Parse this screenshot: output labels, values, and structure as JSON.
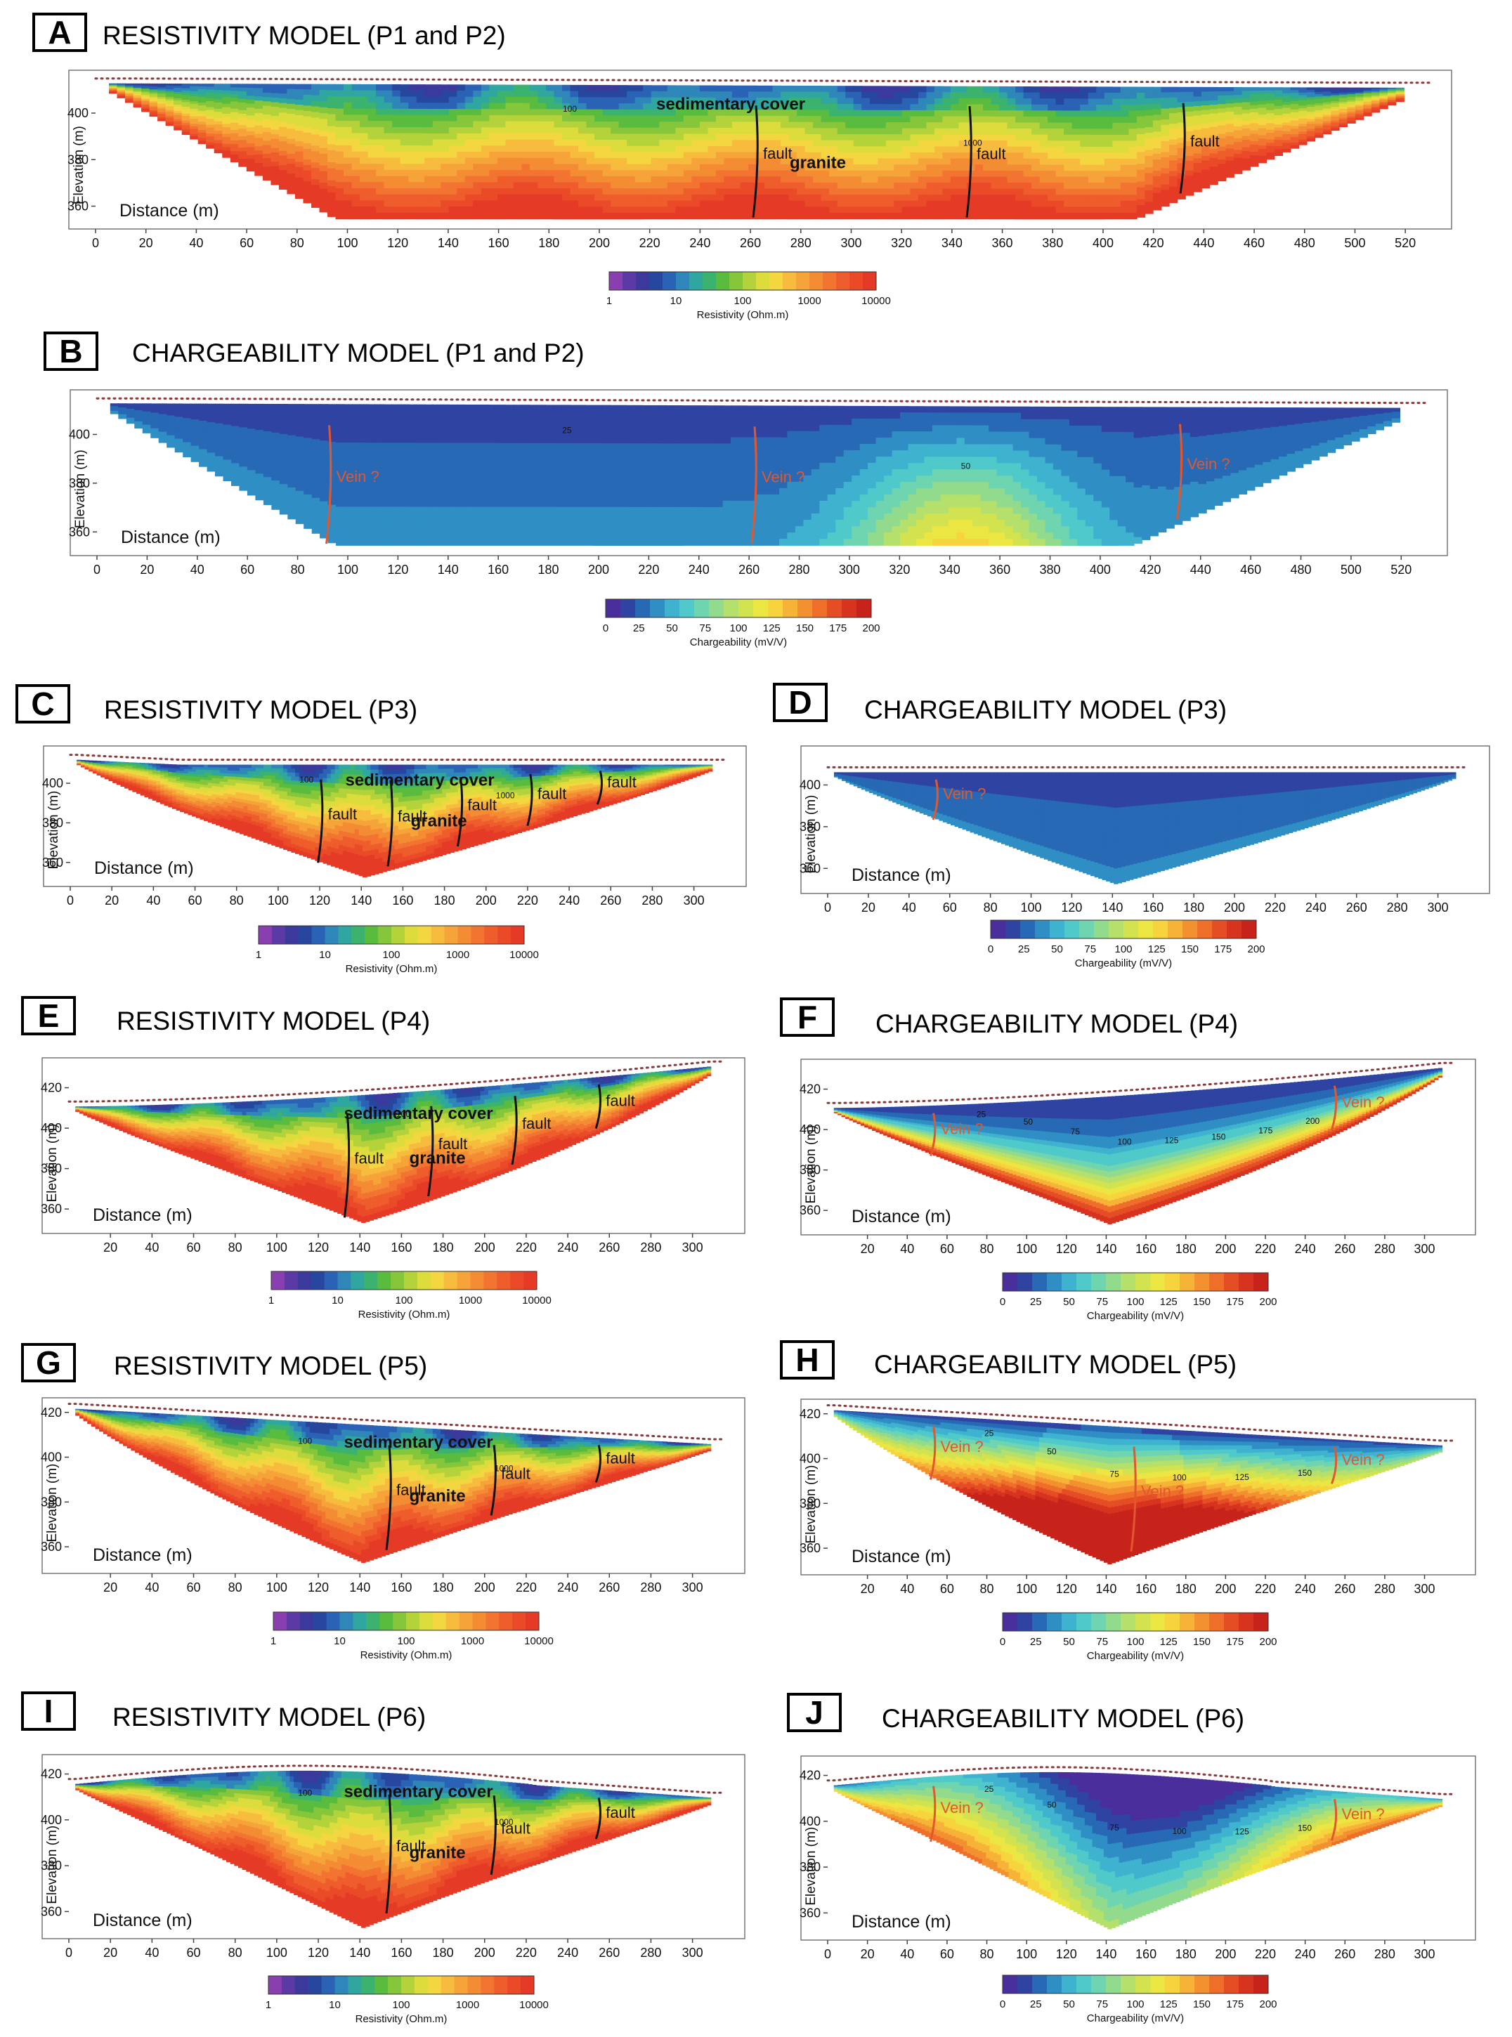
{
  "colors": {
    "resistivity_scale": [
      "#8a3fb0",
      "#5b3aa6",
      "#3b3a9c",
      "#27469d",
      "#2a63b5",
      "#2f86b9",
      "#2fa7a0",
      "#3bb36e",
      "#59bc3e",
      "#85c63a",
      "#b4d23a",
      "#dcdc3c",
      "#f4d640",
      "#f7bc3d",
      "#f6a339",
      "#f48c34",
      "#f27430",
      "#ee5d2b",
      "#ea4a28",
      "#e43a26"
    ],
    "chargeability_scale": [
      "#4a2f9c",
      "#2f43a2",
      "#2769b4",
      "#2f8fc4",
      "#3fb2cf",
      "#4fc9c9",
      "#6fd4b0",
      "#92db8d",
      "#b4e06b",
      "#d3e350",
      "#ece642",
      "#f7d43e",
      "#f6b338",
      "#f39131",
      "#ee6e2a",
      "#e54d24",
      "#d8331f",
      "#c8231b"
    ],
    "fault_line": "#111111",
    "vein_line": "#e2572e",
    "vein_text": "#e2572e",
    "electrodes": "#8a3a3a",
    "frame": "#555555"
  },
  "shared": {
    "resistivity_axis": "Resistivity (Ohm.m)",
    "chargeability_axis": "Chargeability (mV/V)",
    "elevation_label": "Elevation (m)",
    "distance_label": "Distance (m)",
    "res_ticks": [
      "1",
      "10",
      "100",
      "1000",
      "10000"
    ],
    "chg_ticks": [
      "0",
      "25",
      "50",
      "75",
      "100",
      "125",
      "150",
      "175",
      "200"
    ]
  },
  "chart_data": [
    {
      "panel": "A",
      "type": "heatmap",
      "title": "RESISTIVITY MODEL  (P1 and P2)",
      "variable": "resistivity",
      "xlim": [
        0,
        530
      ],
      "ylim": [
        352,
        416
      ],
      "xticks": [
        0,
        20,
        40,
        60,
        80,
        100,
        120,
        140,
        160,
        180,
        200,
        220,
        240,
        260,
        280,
        300,
        320,
        340,
        360,
        380,
        400,
        420,
        440,
        460,
        480,
        500,
        520
      ],
      "yticks": [
        360,
        380,
        400
      ],
      "annotations": [
        "sedimentary cover",
        "granite",
        "fault",
        "fault",
        "fault"
      ],
      "contour_labels": [
        "100",
        "1000"
      ],
      "legend_title": "Resistivity (Ohm.m)",
      "legend_ticks": [
        "1",
        "10",
        "100",
        "1000",
        "10000"
      ]
    },
    {
      "panel": "B",
      "type": "heatmap",
      "title": "CHARGEABILITY MODEL (P1 and P2)",
      "variable": "chargeability",
      "xlim": [
        0,
        530
      ],
      "ylim": [
        352,
        416
      ],
      "xticks": [
        0,
        20,
        40,
        60,
        80,
        100,
        120,
        140,
        160,
        180,
        200,
        220,
        240,
        260,
        280,
        300,
        320,
        340,
        360,
        380,
        400,
        420,
        440,
        460,
        480,
        500,
        520
      ],
      "yticks": [
        360,
        380,
        400
      ],
      "annotations": [
        "Vein ?",
        "Vein ?",
        "Vein ?"
      ],
      "contour_labels": [
        "25",
        "50"
      ],
      "legend_title": "Chargeability (mV/V)",
      "legend_ticks": [
        "0",
        "25",
        "50",
        "75",
        "100",
        "125",
        "150",
        "175",
        "200"
      ]
    },
    {
      "panel": "C",
      "type": "heatmap",
      "title": "RESISTIVITY MODEL (P3)",
      "variable": "resistivity",
      "xlim": [
        0,
        315
      ],
      "ylim": [
        350,
        416
      ],
      "xticks": [
        0,
        20,
        40,
        60,
        80,
        100,
        120,
        140,
        160,
        180,
        200,
        220,
        240,
        260,
        280,
        300
      ],
      "yticks": [
        360,
        380,
        400
      ],
      "annotations": [
        "sedimentary cover",
        "granite",
        "fault",
        "fault",
        "fault",
        "fault",
        "fault"
      ],
      "contour_labels": [
        "100",
        "1000"
      ],
      "legend_title": "Resistivity (Ohm.m)",
      "legend_ticks": [
        "1",
        "10",
        "100",
        "1000",
        "10000"
      ]
    },
    {
      "panel": "D",
      "type": "heatmap",
      "title": "CHARGEABILITY MODEL (P3)",
      "variable": "chargeability",
      "xlim": [
        0,
        315
      ],
      "ylim": [
        350,
        416
      ],
      "xticks": [
        0,
        20,
        40,
        60,
        80,
        100,
        120,
        140,
        160,
        180,
        200,
        220,
        240,
        260,
        280,
        300
      ],
      "yticks": [
        360,
        380,
        400
      ],
      "annotations": [
        "Vein ?"
      ],
      "legend_title": "Chargeability (mV/V)",
      "legend_ticks": [
        "0",
        "25",
        "50",
        "75",
        "100",
        "125",
        "150",
        "175",
        "200"
      ]
    },
    {
      "panel": "E",
      "type": "heatmap",
      "title": "RESISTIVITY MODEL (P4)",
      "variable": "resistivity",
      "xlim": [
        0,
        315
      ],
      "ylim": [
        350,
        432
      ],
      "xticks": [
        20,
        40,
        60,
        80,
        100,
        120,
        140,
        160,
        180,
        200,
        220,
        240,
        260,
        280,
        300
      ],
      "yticks": [
        360,
        380,
        400,
        420
      ],
      "annotations": [
        "sedimentary cover",
        "granite",
        "fault",
        "fault",
        "fault",
        "fault"
      ],
      "contour_labels": [
        "100"
      ],
      "legend_title": "Resistivity (Ohm.m)",
      "legend_ticks": [
        "1",
        "10",
        "100",
        "1000",
        "10000"
      ]
    },
    {
      "panel": "F",
      "type": "heatmap",
      "title": "CHARGEABILITY MODEL (P4)",
      "variable": "chargeability",
      "xlim": [
        0,
        315
      ],
      "ylim": [
        350,
        432
      ],
      "xticks": [
        20,
        40,
        60,
        80,
        100,
        120,
        140,
        160,
        180,
        200,
        220,
        240,
        260,
        280,
        300
      ],
      "yticks": [
        360,
        380,
        400,
        420
      ],
      "annotations": [
        "Vein ?",
        "Vein ?"
      ],
      "contour_labels": [
        "25",
        "50",
        "75",
        "100",
        "125",
        "150",
        "175",
        "200"
      ],
      "legend_title": "Chargeability (mV/V)",
      "legend_ticks": [
        "0",
        "25",
        "50",
        "75",
        "100",
        "125",
        "150",
        "175",
        "200"
      ]
    },
    {
      "panel": "G",
      "type": "heatmap",
      "title": "RESISTIVITY MODEL (P5)",
      "variable": "resistivity",
      "xlim": [
        0,
        315
      ],
      "ylim": [
        350,
        424
      ],
      "xticks": [
        20,
        40,
        60,
        80,
        100,
        120,
        140,
        160,
        180,
        200,
        220,
        240,
        260,
        280,
        300
      ],
      "yticks": [
        360,
        380,
        400,
        420
      ],
      "annotations": [
        "sedimentary cover",
        "granite",
        "fault",
        "fault",
        "fault"
      ],
      "contour_labels": [
        "100",
        "1000"
      ],
      "legend_title": "Resistivity (Ohm.m)",
      "legend_ticks": [
        "1",
        "10",
        "100",
        "1000",
        "10000"
      ]
    },
    {
      "panel": "H",
      "type": "heatmap",
      "title": "CHARGEABILITY MODEL (P5)",
      "variable": "chargeability",
      "xlim": [
        0,
        315
      ],
      "ylim": [
        350,
        424
      ],
      "xticks": [
        20,
        40,
        60,
        80,
        100,
        120,
        140,
        160,
        180,
        200,
        220,
        240,
        260,
        280,
        300
      ],
      "yticks": [
        360,
        380,
        400,
        420
      ],
      "annotations": [
        "Vein ?",
        "Vein ?",
        "Vein ?"
      ],
      "contour_labels": [
        "25",
        "50",
        "75",
        "100",
        "125",
        "150"
      ],
      "legend_title": "Chargeability (mV/V)",
      "legend_ticks": [
        "0",
        "25",
        "50",
        "75",
        "100",
        "125",
        "150",
        "175",
        "200"
      ]
    },
    {
      "panel": "I",
      "type": "heatmap",
      "title": "RESISTIVITY MODEL (P6)",
      "variable": "resistivity",
      "xlim": [
        0,
        315
      ],
      "ylim": [
        350,
        426
      ],
      "xticks": [
        0,
        20,
        40,
        60,
        80,
        100,
        120,
        140,
        160,
        180,
        200,
        220,
        240,
        260,
        280,
        300
      ],
      "yticks": [
        360,
        380,
        400,
        420
      ],
      "annotations": [
        "sedimentary cover",
        "granite",
        "fault",
        "fault",
        "fault"
      ],
      "contour_labels": [
        "100",
        "1000"
      ],
      "legend_title": "Resistivity (Ohm.m)",
      "legend_ticks": [
        "1",
        "10",
        "100",
        "1000",
        "10000"
      ]
    },
    {
      "panel": "J",
      "type": "heatmap",
      "title": "CHARGEABILITY MODEL (P6)",
      "variable": "chargeability",
      "xlim": [
        0,
        315
      ],
      "ylim": [
        350,
        426
      ],
      "xticks": [
        0,
        20,
        40,
        60,
        80,
        100,
        120,
        140,
        160,
        180,
        200,
        220,
        240,
        260,
        280,
        300
      ],
      "yticks": [
        360,
        380,
        400,
        420
      ],
      "annotations": [
        "Vein ?",
        "Vein ?"
      ],
      "contour_labels": [
        "25",
        "50",
        "75",
        "100",
        "125",
        "150"
      ],
      "legend_title": "Chargeability (mV/V)",
      "legend_ticks": [
        "0",
        "25",
        "50",
        "75",
        "100",
        "125",
        "150",
        "175",
        "200"
      ]
    }
  ]
}
